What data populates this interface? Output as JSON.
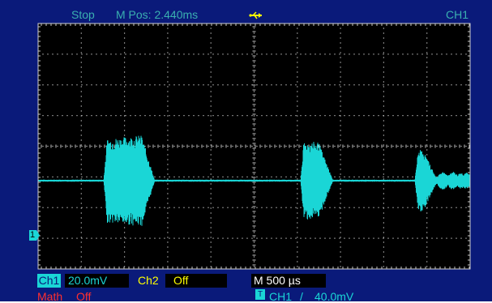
{
  "header": {
    "run_state": "Stop",
    "position": "M Pos: 2.440ms",
    "usb_icon": "usb-icon",
    "trigger_channel": "CH1"
  },
  "footer": {
    "ch1_label": "Ch1",
    "ch1_scale": "20.0mV",
    "ch2_label": "Ch2",
    "ch2_state": "Off",
    "math_label": "Math",
    "math_state": "Off",
    "timebase": "M 500 µs",
    "trigger_badge": "T",
    "trigger_source": "CH1",
    "trigger_slope": "/",
    "trigger_level": "40.0mV"
  },
  "markers": {
    "ch1_ground": "1"
  },
  "colors": {
    "screen_bg": "#000000",
    "frame_bg": "#0a1a7a",
    "trace": "#1ad6d6",
    "grid": "#c8c8c8",
    "text_header": "#3ab0b0",
    "ch1_label": "#1ad6d6",
    "ch2_label": "#ffff00",
    "math_label": "#ff3030",
    "trigger_text": "#1ad6d6"
  }
}
